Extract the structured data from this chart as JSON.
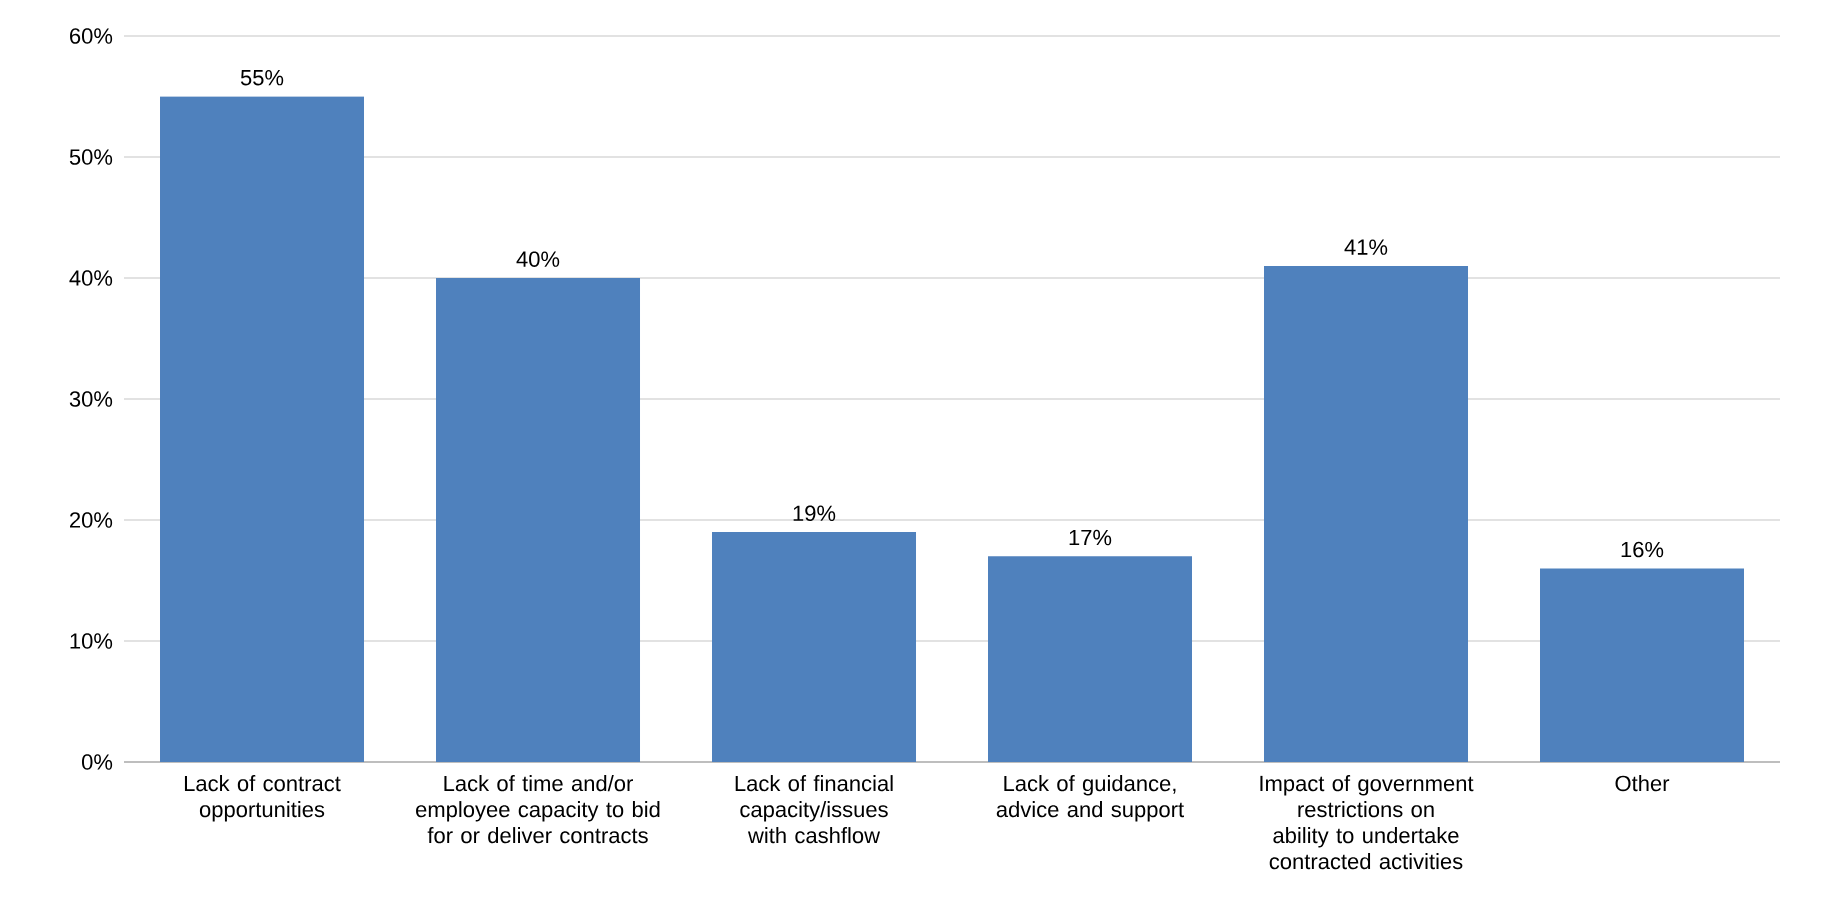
{
  "chart_data": {
    "type": "bar",
    "categories": [
      "Lack of contract opportunities",
      "Lack of time and/or employee capacity to bid for or deliver contracts",
      "Lack of financial capacity/issues with cashflow",
      "Lack of guidance, advice and support",
      "Impact of government restrictions on ability to undertake contracted activities",
      "Other"
    ],
    "values": [
      55,
      40,
      19,
      17,
      41,
      16
    ],
    "value_labels": [
      "55%",
      "40%",
      "19%",
      "17%",
      "41%",
      "16%"
    ],
    "color": "#4f81bd",
    "ylim": [
      0,
      60
    ],
    "yticks": [
      {
        "value": 0,
        "label": "0%"
      },
      {
        "value": 10,
        "label": "10%"
      },
      {
        "value": 20,
        "label": "20%"
      },
      {
        "value": 30,
        "label": "30%"
      },
      {
        "value": 40,
        "label": "40%"
      },
      {
        "value": 50,
        "label": "50%"
      },
      {
        "value": 60,
        "label": "60%"
      }
    ],
    "grid": "y"
  }
}
